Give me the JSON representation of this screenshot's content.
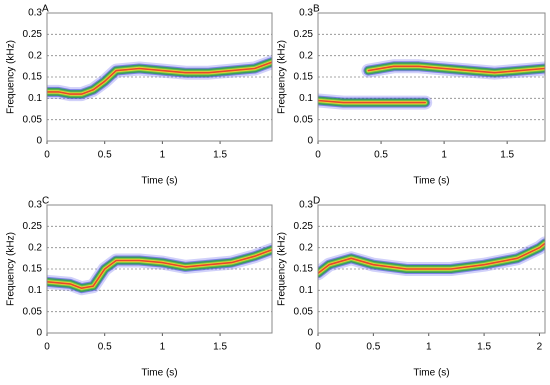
{
  "chart_data": [
    {
      "type": "spectrogram",
      "panel_label": "A",
      "xlabel": "Time (s)",
      "ylabel": "Frequency (kHz)",
      "xlim": [
        0,
        1.95
      ],
      "xticks": [
        0,
        0.5,
        1,
        1.5
      ],
      "ylim": [
        0,
        0.3
      ],
      "yticks": [
        0,
        0.05,
        0.1,
        0.15,
        0.2,
        0.25,
        0.3
      ],
      "grid": true,
      "x": [
        0,
        0.1,
        0.2,
        0.3,
        0.4,
        0.5,
        0.6,
        0.8,
        1.0,
        1.2,
        1.4,
        1.6,
        1.8,
        1.95
      ],
      "values": [
        0.115,
        0.115,
        0.11,
        0.11,
        0.12,
        0.14,
        0.165,
        0.17,
        0.165,
        0.16,
        0.16,
        0.165,
        0.17,
        0.185
      ]
    },
    {
      "type": "spectrogram",
      "panel_label": "B",
      "xlabel": "Time (s)",
      "ylabel": "Frequency (kHz)",
      "xlim": [
        0,
        1.8
      ],
      "xticks": [
        0,
        0.5,
        1,
        1.5
      ],
      "ylim": [
        0,
        0.3
      ],
      "yticks": [
        0,
        0.05,
        0.1,
        0.15,
        0.2,
        0.25,
        0.3
      ],
      "grid": true,
      "x": [
        0,
        0.2,
        0.4,
        0.6,
        0.85,
        0.85,
        0.4,
        0.6,
        0.8,
        1.0,
        1.2,
        1.4,
        1.6,
        1.8
      ],
      "values": [
        0.095,
        0.09,
        0.09,
        0.09,
        0.09,
        null,
        0.165,
        0.175,
        0.175,
        0.17,
        0.165,
        0.16,
        0.165,
        0.17
      ]
    },
    {
      "type": "spectrogram",
      "panel_label": "C",
      "xlabel": "Time (s)",
      "ylabel": "Frequency (kHz)",
      "xlim": [
        0,
        1.95
      ],
      "xticks": [
        0,
        0.5,
        1,
        1.5
      ],
      "ylim": [
        0,
        0.3
      ],
      "yticks": [
        0,
        0.05,
        0.1,
        0.15,
        0.2,
        0.25,
        0.3
      ],
      "grid": true,
      "x": [
        0,
        0.2,
        0.3,
        0.4,
        0.5,
        0.6,
        0.8,
        1.0,
        1.2,
        1.4,
        1.6,
        1.8,
        1.95
      ],
      "values": [
        0.12,
        0.115,
        0.105,
        0.11,
        0.15,
        0.17,
        0.17,
        0.165,
        0.155,
        0.16,
        0.165,
        0.18,
        0.195
      ]
    },
    {
      "type": "spectrogram",
      "panel_label": "D",
      "xlabel": "Time (s)",
      "ylabel": "Frequency (kHz)",
      "xlim": [
        0,
        2.05
      ],
      "xticks": [
        0,
        0.5,
        1,
        1.5,
        2
      ],
      "ylim": [
        0,
        0.3
      ],
      "yticks": [
        0,
        0.05,
        0.1,
        0.15,
        0.2,
        0.25,
        0.3
      ],
      "grid": true,
      "x": [
        0,
        0.1,
        0.3,
        0.5,
        0.8,
        1.0,
        1.2,
        1.5,
        1.8,
        2.0,
        2.05
      ],
      "values": [
        0.14,
        0.16,
        0.175,
        0.16,
        0.15,
        0.15,
        0.15,
        0.16,
        0.175,
        0.2,
        0.21
      ]
    }
  ]
}
